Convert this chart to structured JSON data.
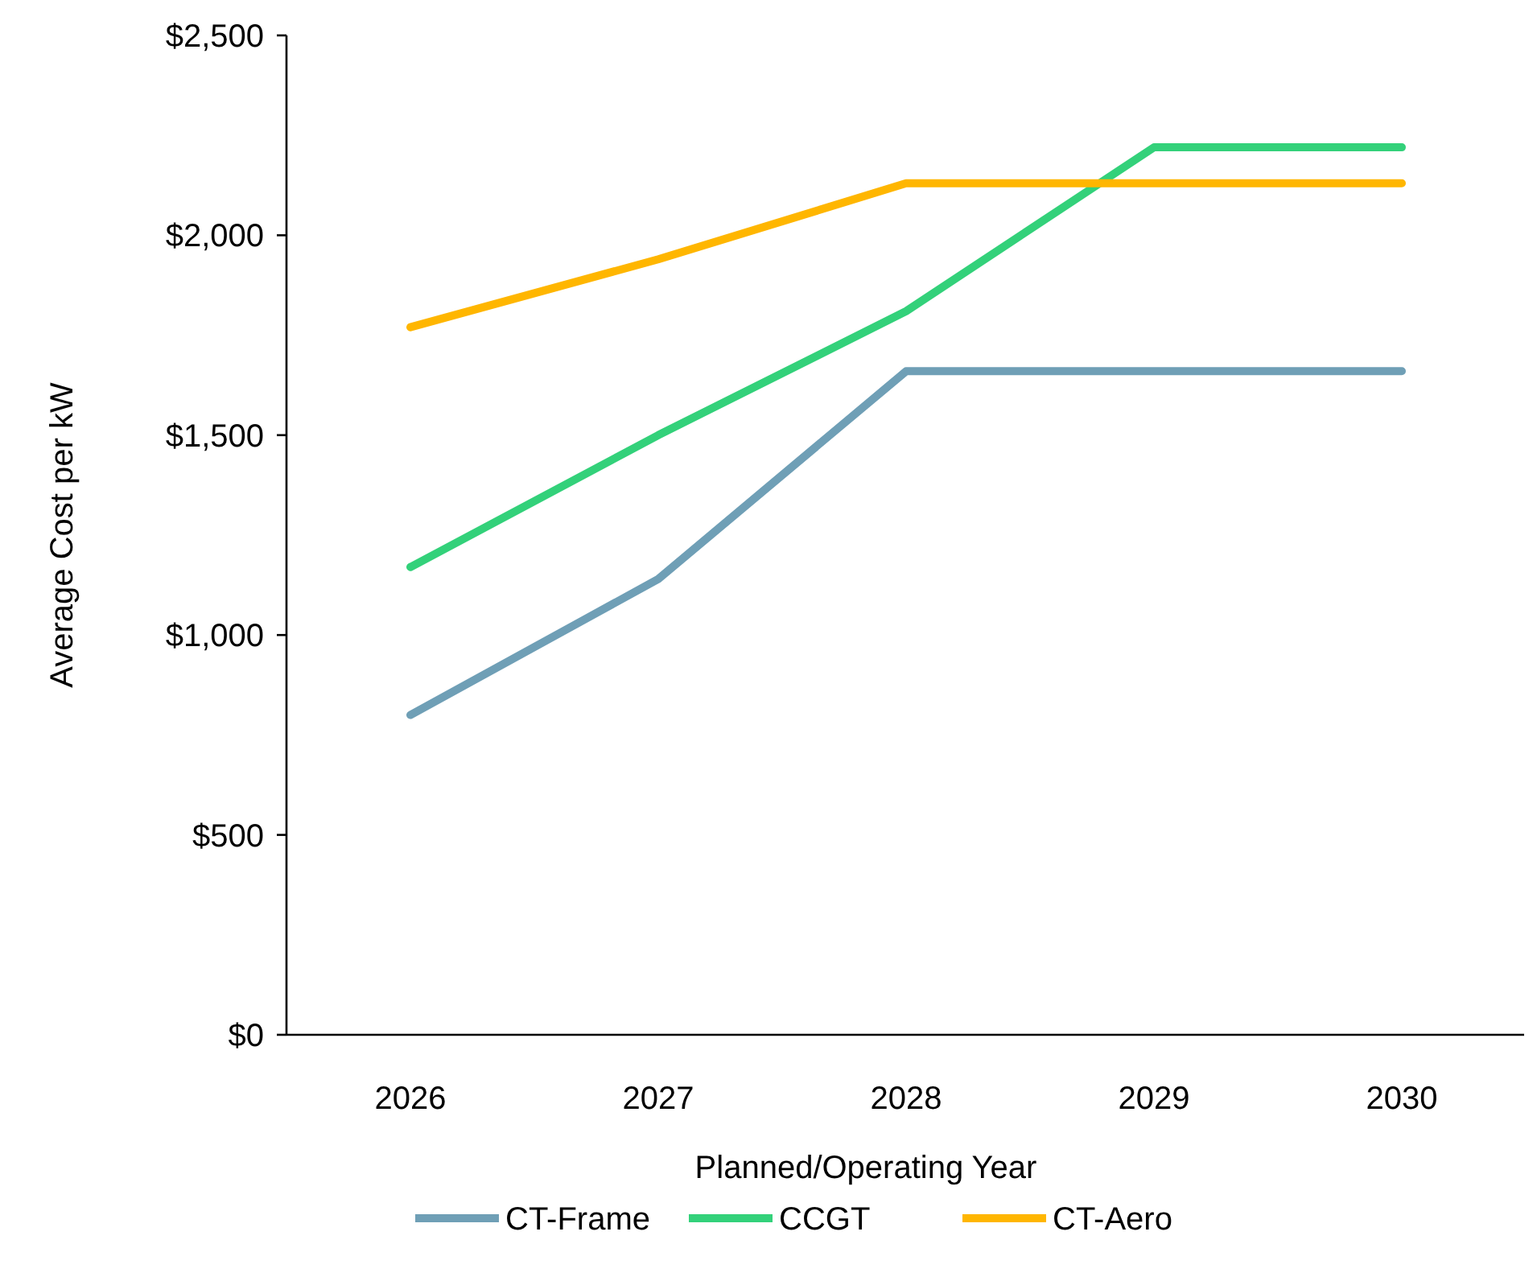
{
  "chart_data": {
    "type": "line",
    "xlabel": "Planned/Operating Year",
    "ylabel": "Average Cost per kW",
    "categories": [
      "2026",
      "2027",
      "2028",
      "2029",
      "2030"
    ],
    "series": [
      {
        "name": "CT-Frame",
        "color": "#6f9fb6",
        "values": [
          800,
          1140,
          1660,
          1660,
          1660
        ]
      },
      {
        "name": "CCGT",
        "color": "#33d17a",
        "values": [
          1170,
          1500,
          1810,
          2220,
          2220
        ]
      },
      {
        "name": "CT-Aero",
        "color": "#ffb600",
        "values": [
          1770,
          1940,
          2130,
          2130,
          2130
        ]
      }
    ],
    "ylim": [
      0,
      2500
    ],
    "yticks": [
      {
        "value": 0,
        "label": "$0"
      },
      {
        "value": 500,
        "label": "$500"
      },
      {
        "value": 1000,
        "label": "$1,000"
      },
      {
        "value": 1500,
        "label": "$1,500"
      },
      {
        "value": 2000,
        "label": "$2,000"
      },
      {
        "value": 2500,
        "label": "$2,500"
      }
    ],
    "grid": false,
    "legend": "bottom",
    "marker": "none",
    "line_style": "solid"
  }
}
